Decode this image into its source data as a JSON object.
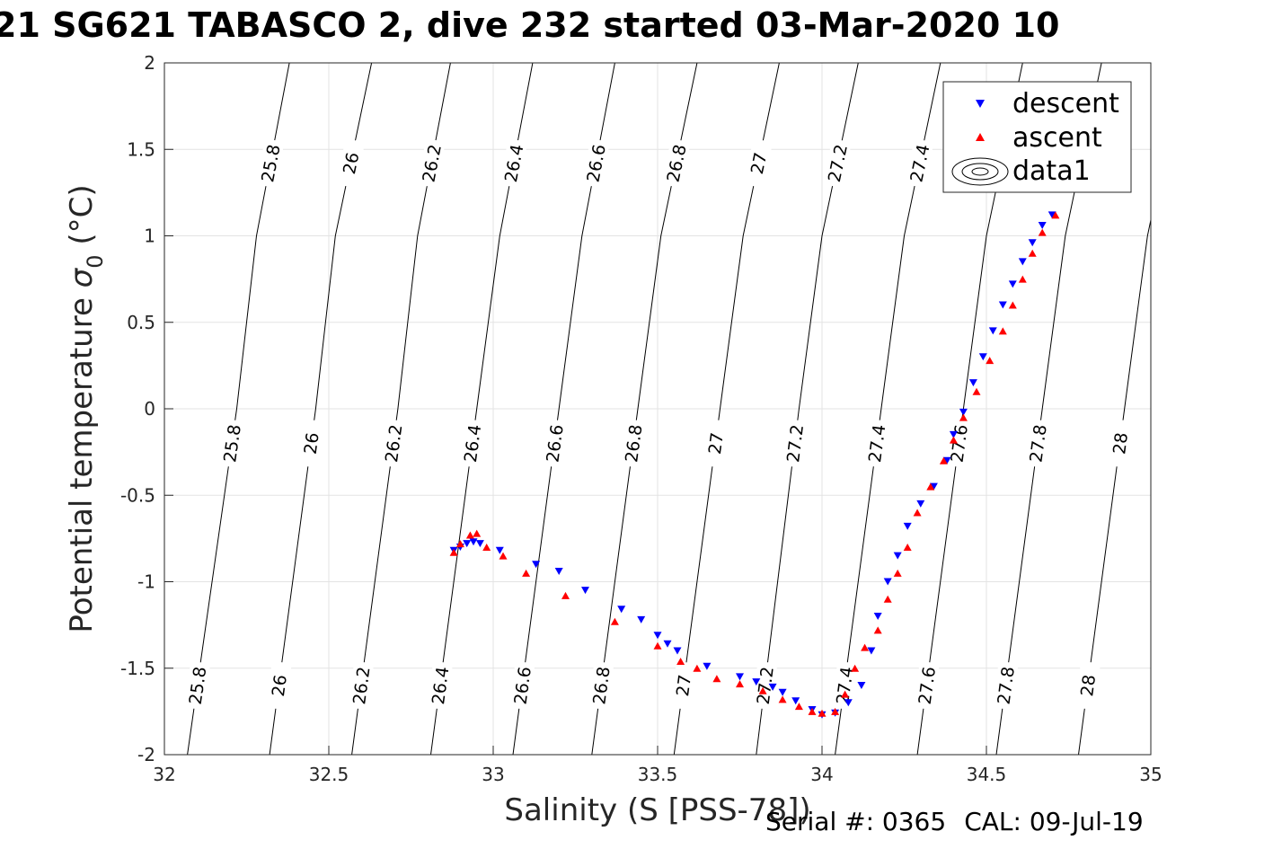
{
  "title": "21 SG621 TABASCO 2, dive 232 started 03-Mar-2020 10",
  "footer": {
    "serial": "Serial #: 0365",
    "cal": "CAL: 09-Jul-19"
  },
  "chart_data": {
    "type": "scatter",
    "title": "21 SG621 TABASCO 2, dive 232 started 03-Mar-2020 10",
    "xlabel": "Salinity (S [PSS-78])",
    "ylabel": "Potential temperature σ 0 (°C)",
    "xlim": [
      32,
      35
    ],
    "ylim": [
      -2,
      2
    ],
    "xticks": [
      "32",
      "32.5",
      "33",
      "33.5",
      "34",
      "34.5",
      "35"
    ],
    "yticks": [
      "-2",
      "-1.5",
      "-1",
      "-0.5",
      "0",
      "0.5",
      "1",
      "1.5",
      "2"
    ],
    "grid": true,
    "legend": {
      "position": "top-right",
      "entries": [
        "descent",
        "ascent",
        "data1"
      ]
    },
    "colors": {
      "descent": "#0000ff",
      "ascent": "#ff0000",
      "contour": "#000000",
      "grid": "#e3e3e3"
    },
    "contours": {
      "levels": [
        "25.8",
        "26",
        "26.2",
        "26.4",
        "26.6",
        "26.8",
        "27",
        "27.2",
        "27.4",
        "27.6",
        "27.8",
        "28"
      ],
      "lines": [
        {
          "level": "25.8",
          "points": [
            [
              32.07,
              -2
            ],
            [
              32.22,
              0
            ],
            [
              32.28,
              1
            ],
            [
              32.38,
              2
            ]
          ]
        },
        {
          "level": "26",
          "points": [
            [
              32.32,
              -2
            ],
            [
              32.46,
              0
            ],
            [
              32.52,
              1
            ],
            [
              32.63,
              2
            ]
          ]
        },
        {
          "level": "26.2",
          "points": [
            [
              32.57,
              -2
            ],
            [
              32.71,
              0
            ],
            [
              32.77,
              1
            ],
            [
              32.87,
              2
            ]
          ]
        },
        {
          "level": "26.4",
          "points": [
            [
              32.81,
              -2
            ],
            [
              32.95,
              0
            ],
            [
              33.02,
              1
            ],
            [
              33.12,
              2
            ]
          ]
        },
        {
          "level": "26.6",
          "points": [
            [
              33.06,
              -2
            ],
            [
              33.2,
              0
            ],
            [
              33.27,
              1
            ],
            [
              33.37,
              2
            ]
          ]
        },
        {
          "level": "26.8",
          "points": [
            [
              33.3,
              -2
            ],
            [
              33.44,
              0
            ],
            [
              33.51,
              1
            ],
            [
              33.62,
              2
            ]
          ]
        },
        {
          "level": "27",
          "points": [
            [
              33.55,
              -2
            ],
            [
              33.69,
              0
            ],
            [
              33.76,
              1
            ],
            [
              33.87,
              2
            ]
          ]
        },
        {
          "level": "27.2",
          "points": [
            [
              33.8,
              -2
            ],
            [
              33.93,
              0
            ],
            [
              34.0,
              1
            ],
            [
              34.11,
              2
            ]
          ]
        },
        {
          "level": "27.4",
          "points": [
            [
              34.04,
              -2
            ],
            [
              34.18,
              0
            ],
            [
              34.25,
              1
            ],
            [
              34.36,
              2
            ]
          ]
        },
        {
          "level": "27.6",
          "points": [
            [
              34.29,
              -2
            ],
            [
              34.43,
              0
            ],
            [
              34.5,
              1
            ],
            [
              34.61,
              2
            ]
          ]
        },
        {
          "level": "27.8",
          "points": [
            [
              34.53,
              -2
            ],
            [
              34.67,
              0
            ],
            [
              34.74,
              1
            ],
            [
              34.85,
              2
            ]
          ]
        },
        {
          "level": "28",
          "points": [
            [
              34.78,
              -2
            ],
            [
              34.92,
              0
            ],
            [
              34.99,
              1
            ],
            [
              35.1,
              2
            ]
          ]
        }
      ],
      "label_rows": [
        -1.6,
        -0.2,
        1.42
      ]
    },
    "series": [
      {
        "name": "descent",
        "marker": "triangle-down",
        "points": [
          [
            32.88,
            -0.82
          ],
          [
            32.9,
            -0.8
          ],
          [
            32.92,
            -0.78
          ],
          [
            32.94,
            -0.77
          ],
          [
            32.96,
            -0.78
          ],
          [
            33.02,
            -0.82
          ],
          [
            33.13,
            -0.9
          ],
          [
            33.2,
            -0.94
          ],
          [
            33.28,
            -1.05
          ],
          [
            33.39,
            -1.16
          ],
          [
            33.45,
            -1.22
          ],
          [
            33.5,
            -1.31
          ],
          [
            33.53,
            -1.36
          ],
          [
            33.56,
            -1.4
          ],
          [
            33.65,
            -1.49
          ],
          [
            33.75,
            -1.55
          ],
          [
            33.8,
            -1.58
          ],
          [
            33.85,
            -1.61
          ],
          [
            33.88,
            -1.64
          ],
          [
            33.92,
            -1.69
          ],
          [
            33.97,
            -1.74
          ],
          [
            34.0,
            -1.77
          ],
          [
            34.04,
            -1.76
          ],
          [
            34.08,
            -1.7
          ],
          [
            34.12,
            -1.6
          ],
          [
            34.15,
            -1.4
          ],
          [
            34.17,
            -1.2
          ],
          [
            34.2,
            -1.0
          ],
          [
            34.23,
            -0.85
          ],
          [
            34.26,
            -0.68
          ],
          [
            34.3,
            -0.55
          ],
          [
            34.34,
            -0.45
          ],
          [
            34.38,
            -0.3
          ],
          [
            34.4,
            -0.15
          ],
          [
            34.43,
            -0.02
          ],
          [
            34.46,
            0.15
          ],
          [
            34.49,
            0.3
          ],
          [
            34.52,
            0.45
          ],
          [
            34.55,
            0.6
          ],
          [
            34.58,
            0.72
          ],
          [
            34.61,
            0.85
          ],
          [
            34.64,
            0.96
          ],
          [
            34.67,
            1.06
          ],
          [
            34.7,
            1.12
          ]
        ]
      },
      {
        "name": "ascent",
        "marker": "triangle-up",
        "points": [
          [
            32.88,
            -0.83
          ],
          [
            32.9,
            -0.78
          ],
          [
            32.93,
            -0.73
          ],
          [
            32.95,
            -0.72
          ],
          [
            32.98,
            -0.8
          ],
          [
            33.03,
            -0.85
          ],
          [
            33.1,
            -0.95
          ],
          [
            33.22,
            -1.08
          ],
          [
            33.37,
            -1.23
          ],
          [
            33.5,
            -1.37
          ],
          [
            33.57,
            -1.46
          ],
          [
            33.62,
            -1.5
          ],
          [
            33.68,
            -1.56
          ],
          [
            33.75,
            -1.59
          ],
          [
            33.82,
            -1.63
          ],
          [
            33.88,
            -1.68
          ],
          [
            33.93,
            -1.72
          ],
          [
            33.97,
            -1.75
          ],
          [
            34.0,
            -1.76
          ],
          [
            34.04,
            -1.75
          ],
          [
            34.07,
            -1.65
          ],
          [
            34.1,
            -1.5
          ],
          [
            34.13,
            -1.38
          ],
          [
            34.17,
            -1.28
          ],
          [
            34.2,
            -1.1
          ],
          [
            34.23,
            -0.95
          ],
          [
            34.26,
            -0.8
          ],
          [
            34.29,
            -0.6
          ],
          [
            34.33,
            -0.45
          ],
          [
            34.37,
            -0.3
          ],
          [
            34.4,
            -0.18
          ],
          [
            34.43,
            -0.05
          ],
          [
            34.47,
            0.1
          ],
          [
            34.51,
            0.28
          ],
          [
            34.55,
            0.45
          ],
          [
            34.58,
            0.6
          ],
          [
            34.61,
            0.75
          ],
          [
            34.64,
            0.9
          ],
          [
            34.67,
            1.02
          ],
          [
            34.71,
            1.12
          ]
        ]
      }
    ]
  }
}
